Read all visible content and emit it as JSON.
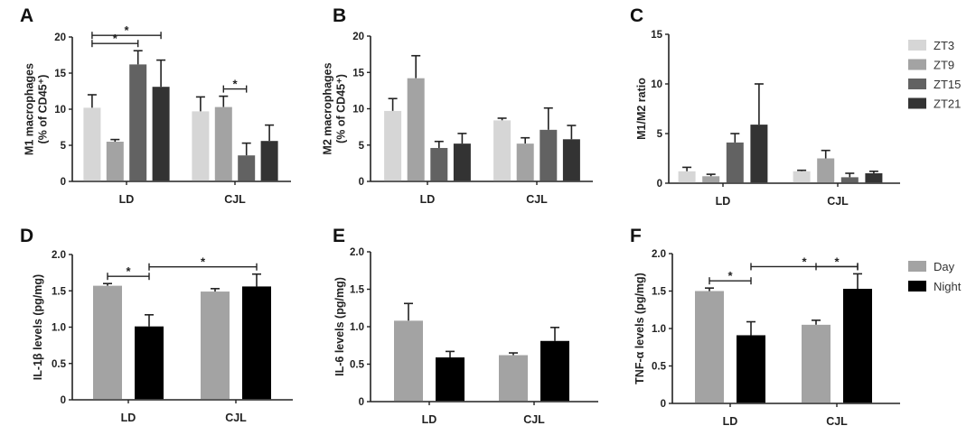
{
  "chart_data": [
    {
      "id": "A",
      "type": "bar",
      "panel_label": "A",
      "title": "",
      "ylabel_lines": [
        "M1 macrophages",
        "(% of CD45⁺)"
      ],
      "xlabel": "",
      "categories": [
        "LD",
        "CJL"
      ],
      "series": [
        {
          "name": "ZT3",
          "values": [
            10.2,
            9.7
          ],
          "errors": [
            1.8,
            2.0
          ]
        },
        {
          "name": "ZT9",
          "values": [
            5.5,
            10.3
          ],
          "errors": [
            0.3,
            1.5
          ]
        },
        {
          "name": "ZT15",
          "values": [
            16.2,
            3.6
          ],
          "errors": [
            1.9,
            1.7
          ]
        },
        {
          "name": "ZT21",
          "values": [
            13.1,
            5.6
          ],
          "errors": [
            3.7,
            2.2
          ]
        }
      ],
      "ylim": [
        0,
        20
      ],
      "yticks": [
        0,
        5,
        10,
        15,
        20
      ],
      "ytick_labels": [
        "0",
        "5",
        "10",
        "15",
        "20"
      ],
      "grid": false,
      "significance": [
        {
          "from": [
            0,
            0
          ],
          "to": [
            0,
            2
          ],
          "label": "*"
        },
        {
          "from": [
            0,
            0
          ],
          "to": [
            0,
            3
          ],
          "label": "*"
        },
        {
          "from": [
            1,
            1
          ],
          "to": [
            1,
            2
          ],
          "label": "*"
        }
      ]
    },
    {
      "id": "B",
      "type": "bar",
      "panel_label": "B",
      "title": "",
      "ylabel_lines": [
        "M2 macrophages",
        "(% of CD45⁺)"
      ],
      "xlabel": "",
      "categories": [
        "LD",
        "CJL"
      ],
      "series": [
        {
          "name": "ZT3",
          "values": [
            9.7,
            8.4
          ],
          "errors": [
            1.7,
            0.3
          ]
        },
        {
          "name": "ZT9",
          "values": [
            14.2,
            5.2
          ],
          "errors": [
            3.1,
            0.8
          ]
        },
        {
          "name": "ZT15",
          "values": [
            4.6,
            7.1
          ],
          "errors": [
            0.9,
            3.0
          ]
        },
        {
          "name": "ZT21",
          "values": [
            5.2,
            5.8
          ],
          "errors": [
            1.4,
            1.9
          ]
        }
      ],
      "ylim": [
        0,
        20
      ],
      "yticks": [
        0,
        5,
        10,
        15,
        20
      ],
      "ytick_labels": [
        "0",
        "5",
        "10",
        "15",
        "20"
      ],
      "grid": false,
      "significance": []
    },
    {
      "id": "C",
      "type": "bar",
      "panel_label": "C",
      "title": "",
      "ylabel_lines": [
        "M1/M2 ratio"
      ],
      "xlabel": "",
      "categories": [
        "LD",
        "CJL"
      ],
      "series": [
        {
          "name": "ZT3",
          "values": [
            1.2,
            1.2
          ],
          "errors": [
            0.4,
            0.1
          ]
        },
        {
          "name": "ZT9",
          "values": [
            0.7,
            2.5
          ],
          "errors": [
            0.2,
            0.8
          ]
        },
        {
          "name": "ZT15",
          "values": [
            4.1,
            0.6
          ],
          "errors": [
            0.9,
            0.4
          ]
        },
        {
          "name": "ZT21",
          "values": [
            5.9,
            1.0
          ],
          "errors": [
            4.1,
            0.2
          ]
        }
      ],
      "ylim": [
        0,
        15
      ],
      "yticks": [
        0,
        5,
        10,
        15
      ],
      "ytick_labels": [
        "0",
        "5",
        "10",
        "15"
      ],
      "grid": false,
      "legend": {
        "placement": "right",
        "entries": [
          "ZT3",
          "ZT9",
          "ZT15",
          "ZT21"
        ]
      },
      "significance": []
    },
    {
      "id": "D",
      "type": "bar",
      "panel_label": "D",
      "title": "",
      "ylabel_lines": [
        "IL-1β levels (pg/mg)"
      ],
      "xlabel": "",
      "categories": [
        "LD",
        "CJL"
      ],
      "series": [
        {
          "name": "Day",
          "values": [
            1.57,
            1.49
          ],
          "errors": [
            0.03,
            0.04
          ]
        },
        {
          "name": "Night",
          "values": [
            1.01,
            1.56
          ],
          "errors": [
            0.16,
            0.17
          ]
        }
      ],
      "ylim": [
        0,
        2.0
      ],
      "yticks": [
        0,
        0.5,
        1.0,
        1.5,
        2.0
      ],
      "ytick_labels": [
        "0",
        "0.5",
        "1.0",
        "1.5",
        "2.0"
      ],
      "grid": false,
      "significance": [
        {
          "from": [
            0,
            0
          ],
          "to": [
            0,
            1
          ],
          "label": "*"
        },
        {
          "from": [
            0,
            1
          ],
          "to": [
            1,
            1
          ],
          "label": "*"
        }
      ]
    },
    {
      "id": "E",
      "type": "bar",
      "panel_label": "E",
      "title": "",
      "ylabel_lines": [
        "IL-6 levels (pg/mg)"
      ],
      "xlabel": "",
      "categories": [
        "LD",
        "CJL"
      ],
      "series": [
        {
          "name": "Day",
          "values": [
            1.08,
            0.62
          ],
          "errors": [
            0.23,
            0.03
          ]
        },
        {
          "name": "Night",
          "values": [
            0.59,
            0.81
          ],
          "errors": [
            0.08,
            0.18
          ]
        }
      ],
      "ylim": [
        0,
        2.0
      ],
      "yticks": [
        0,
        0.5,
        1.0,
        1.5,
        2.0
      ],
      "ytick_labels": [
        "0",
        "0.5",
        "1.0",
        "1.5",
        "2.0"
      ],
      "grid": false,
      "significance": []
    },
    {
      "id": "F",
      "type": "bar",
      "panel_label": "F",
      "title": "",
      "ylabel_lines": [
        "TNF-α levels (pg/mg)"
      ],
      "xlabel": "",
      "categories": [
        "LD",
        "CJL"
      ],
      "series": [
        {
          "name": "Day",
          "values": [
            1.5,
            1.05
          ],
          "errors": [
            0.04,
            0.06
          ]
        },
        {
          "name": "Night",
          "values": [
            0.91,
            1.53
          ],
          "errors": [
            0.18,
            0.2
          ]
        }
      ],
      "ylim": [
        0,
        2.0
      ],
      "yticks": [
        0,
        0.5,
        1.0,
        1.5,
        2.0
      ],
      "ytick_labels": [
        "0",
        "0.5",
        "1.0",
        "1.5",
        "2.0"
      ],
      "grid": false,
      "legend": {
        "placement": "right",
        "entries": [
          "Day",
          "Night"
        ]
      },
      "significance": [
        {
          "from": [
            0,
            0
          ],
          "to": [
            0,
            1
          ],
          "label": "*"
        },
        {
          "from": [
            1,
            0
          ],
          "to": [
            1,
            1
          ],
          "label": "*"
        },
        {
          "from": [
            0,
            1
          ],
          "to": [
            1,
            1
          ],
          "label": "*"
        }
      ]
    }
  ],
  "colors": {
    "ZT3": "#d6d6d6",
    "ZT9": "#a3a3a3",
    "ZT15": "#626262",
    "ZT21": "#333333",
    "Day": "#a3a3a3",
    "Night": "#000000",
    "axis": "#222222"
  }
}
